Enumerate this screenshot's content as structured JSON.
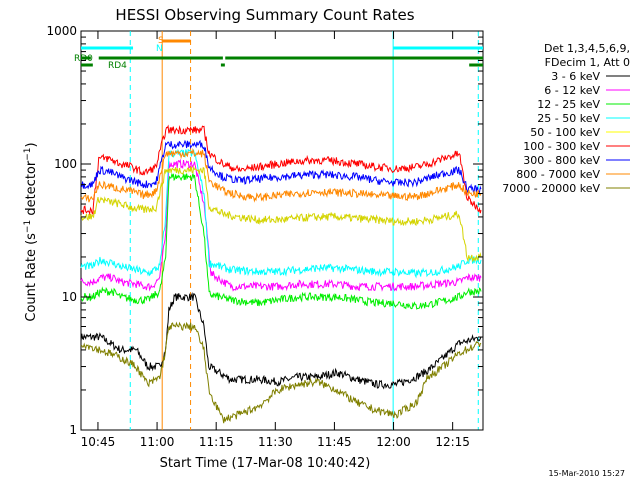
{
  "chart_data": {
    "type": "line",
    "title": "HESSI Observing Summary Count Rates",
    "xlabel": "Start Time (17-Mar-08 10:40:42)",
    "ylabel_parts": [
      "Count Rate (s",
      "−1",
      " detector",
      "−1",
      ")"
    ],
    "footer": "15-Mar-2010 15:27",
    "x_unit": "minutes after 10:40:42",
    "xlim": [
      0,
      102
    ],
    "ylim": [
      1,
      1000
    ],
    "log_y": true,
    "x_ticks": [
      {
        "t": 4.3,
        "label": "10:45"
      },
      {
        "t": 19.3,
        "label": "11:00"
      },
      {
        "t": 34.3,
        "label": "11:15"
      },
      {
        "t": 49.3,
        "label": "11:30"
      },
      {
        "t": 64.3,
        "label": "11:45"
      },
      {
        "t": 79.3,
        "label": "12:00"
      },
      {
        "t": 94.3,
        "label": "12:15"
      }
    ],
    "y_ticks": [
      {
        "v": 1,
        "label": "1"
      },
      {
        "v": 10,
        "label": "10"
      },
      {
        "v": 100,
        "label": "100"
      },
      {
        "v": 1000,
        "label": "1000"
      }
    ],
    "legend_header": [
      "Det 1,3,4,5,6,9,",
      "FDecim 1, Att 0"
    ],
    "series": [
      {
        "name": "3 - 6 keV",
        "color": "#000000",
        "points": [
          [
            0,
            5
          ],
          [
            5,
            5
          ],
          [
            10,
            4
          ],
          [
            14,
            4
          ],
          [
            17,
            3
          ],
          [
            20,
            3
          ],
          [
            21.5,
            4
          ],
          [
            22.3,
            8
          ],
          [
            23.8,
            10
          ],
          [
            28.8,
            10
          ],
          [
            31.2,
            6
          ],
          [
            32.4,
            3
          ],
          [
            38,
            2.4
          ],
          [
            45,
            2.4
          ],
          [
            50,
            2.3
          ],
          [
            55,
            2.5
          ],
          [
            60,
            2.5
          ],
          [
            65,
            2.7
          ],
          [
            70,
            2.4
          ],
          [
            75,
            2.2
          ],
          [
            80,
            2.2
          ],
          [
            85,
            2.5
          ],
          [
            88,
            2.8
          ],
          [
            92,
            3.5
          ],
          [
            96,
            4.5
          ],
          [
            101.5,
            5
          ]
        ]
      },
      {
        "name": "6 - 12 keV",
        "color": "#ff00ff",
        "points": [
          [
            0,
            13
          ],
          [
            3,
            13
          ],
          [
            5,
            14
          ],
          [
            8,
            14
          ],
          [
            10,
            13
          ],
          [
            14,
            12.5
          ],
          [
            16,
            12
          ],
          [
            18,
            12
          ],
          [
            20,
            14
          ],
          [
            21.5,
            30
          ],
          [
            22.3,
            100
          ],
          [
            23.8,
            100
          ],
          [
            28.8,
            100
          ],
          [
            31.2,
            50
          ],
          [
            32,
            30
          ],
          [
            33,
            15
          ],
          [
            38,
            12
          ],
          [
            45,
            12
          ],
          [
            50,
            12
          ],
          [
            55,
            12.5
          ],
          [
            60,
            12.5
          ],
          [
            65,
            12.5
          ],
          [
            70,
            12
          ],
          [
            75,
            12
          ],
          [
            80,
            12
          ],
          [
            85,
            12
          ],
          [
            90,
            12.5
          ],
          [
            96,
            13
          ],
          [
            98,
            14
          ],
          [
            101.5,
            14
          ]
        ]
      },
      {
        "name": "12 - 25 keV",
        "color": "#00ee00",
        "points": [
          [
            0,
            10
          ],
          [
            3,
            10
          ],
          [
            5,
            11
          ],
          [
            8,
            11
          ],
          [
            10,
            10
          ],
          [
            14,
            9.5
          ],
          [
            17,
            9.5
          ],
          [
            20,
            11
          ],
          [
            21.5,
            20
          ],
          [
            22.3,
            80
          ],
          [
            23.8,
            80
          ],
          [
            28.8,
            80
          ],
          [
            31.2,
            30
          ],
          [
            32.5,
            10.5
          ],
          [
            38,
            9.5
          ],
          [
            45,
            9
          ],
          [
            50,
            9.5
          ],
          [
            55,
            10
          ],
          [
            60,
            10
          ],
          [
            65,
            10
          ],
          [
            70,
            9.5
          ],
          [
            75,
            9
          ],
          [
            80,
            9
          ],
          [
            85,
            8.5
          ],
          [
            90,
            9
          ],
          [
            96,
            10
          ],
          [
            98,
            11
          ],
          [
            101.5,
            11
          ]
        ]
      },
      {
        "name": "25 - 50 keV",
        "color": "#00ffff",
        "points": [
          [
            0,
            17
          ],
          [
            3,
            17
          ],
          [
            5,
            19
          ],
          [
            8,
            18
          ],
          [
            10,
            17
          ],
          [
            14,
            16
          ],
          [
            17,
            15
          ],
          [
            20,
            17
          ],
          [
            21.5,
            40
          ],
          [
            22.3,
            120
          ],
          [
            23.8,
            120
          ],
          [
            28.8,
            120
          ],
          [
            31.2,
            60
          ],
          [
            32.5,
            18
          ],
          [
            38,
            16
          ],
          [
            45,
            15.5
          ],
          [
            50,
            15.5
          ],
          [
            55,
            16
          ],
          [
            60,
            16.5
          ],
          [
            65,
            16.5
          ],
          [
            70,
            16
          ],
          [
            75,
            15.5
          ],
          [
            80,
            15.5
          ],
          [
            85,
            15
          ],
          [
            90,
            15.5
          ],
          [
            96,
            17
          ],
          [
            98,
            19
          ],
          [
            101.5,
            19
          ]
        ]
      },
      {
        "name": "50 - 100 keV",
        "color": "#ffff00",
        "marker": true,
        "points": []
      },
      {
        "name": "100 - 300 keV",
        "color": "#ff0000",
        "points": [
          [
            0,
            45
          ],
          [
            3,
            45
          ],
          [
            4.5,
            110
          ],
          [
            7,
            110
          ],
          [
            10,
            100
          ],
          [
            13,
            95
          ],
          [
            16,
            85
          ],
          [
            19,
            95
          ],
          [
            21.5,
            180
          ],
          [
            22.3,
            180
          ],
          [
            23.8,
            180
          ],
          [
            28.8,
            180
          ],
          [
            31.2,
            180
          ],
          [
            32.5,
            120
          ],
          [
            36,
            100
          ],
          [
            40,
            90
          ],
          [
            45,
            95
          ],
          [
            50,
            100
          ],
          [
            55,
            105
          ],
          [
            60,
            107
          ],
          [
            65,
            105
          ],
          [
            70,
            100
          ],
          [
            75,
            95
          ],
          [
            80,
            92
          ],
          [
            85,
            95
          ],
          [
            88,
            100
          ],
          [
            92,
            110
          ],
          [
            96,
            120
          ],
          [
            98,
            55
          ],
          [
            101.5,
            45
          ]
        ]
      },
      {
        "name": "300 - 800 keV",
        "color": "#0000ff",
        "points": [
          [
            0,
            70
          ],
          [
            3,
            70
          ],
          [
            4.5,
            90
          ],
          [
            7,
            88
          ],
          [
            10,
            80
          ],
          [
            13,
            75
          ],
          [
            16,
            70
          ],
          [
            19,
            72
          ],
          [
            21.5,
            140
          ],
          [
            22.3,
            140
          ],
          [
            23.8,
            140
          ],
          [
            28.8,
            140
          ],
          [
            31.2,
            140
          ],
          [
            32.5,
            95
          ],
          [
            36,
            80
          ],
          [
            40,
            75
          ],
          [
            45,
            77
          ],
          [
            50,
            80
          ],
          [
            55,
            82
          ],
          [
            60,
            84
          ],
          [
            65,
            82
          ],
          [
            70,
            80
          ],
          [
            75,
            75
          ],
          [
            80,
            72
          ],
          [
            85,
            73
          ],
          [
            88,
            78
          ],
          [
            92,
            85
          ],
          [
            96,
            90
          ],
          [
            98,
            65
          ],
          [
            101.5,
            65
          ]
        ]
      },
      {
        "name": "800 - 7000 keV",
        "color": "#ff8800",
        "points": [
          [
            0,
            55
          ],
          [
            3,
            55
          ],
          [
            4.5,
            70
          ],
          [
            7,
            68
          ],
          [
            10,
            65
          ],
          [
            13,
            62
          ],
          [
            16,
            58
          ],
          [
            19,
            62
          ],
          [
            21.5,
            120
          ],
          [
            22.3,
            120
          ],
          [
            23.8,
            120
          ],
          [
            28.8,
            120
          ],
          [
            31.2,
            120
          ],
          [
            32.5,
            75
          ],
          [
            36,
            63
          ],
          [
            40,
            58
          ],
          [
            45,
            56
          ],
          [
            50,
            58
          ],
          [
            55,
            60
          ],
          [
            60,
            62
          ],
          [
            65,
            61
          ],
          [
            70,
            60
          ],
          [
            75,
            58
          ],
          [
            80,
            57
          ],
          [
            85,
            57
          ],
          [
            88,
            60
          ],
          [
            92,
            65
          ],
          [
            96,
            70
          ],
          [
            98,
            60
          ],
          [
            101.5,
            60
          ]
        ]
      },
      {
        "name": "7000 - 20000 keV",
        "color": "#808000",
        "points": [
          [
            0,
            4.5
          ],
          [
            5,
            4
          ],
          [
            10,
            3.5
          ],
          [
            14,
            3
          ],
          [
            17,
            2.2
          ],
          [
            20,
            2.5
          ],
          [
            21.5,
            4
          ],
          [
            22.3,
            6
          ],
          [
            23.8,
            6
          ],
          [
            28.8,
            6
          ],
          [
            31.2,
            4
          ],
          [
            32.4,
            2
          ],
          [
            36,
            1.2
          ],
          [
            40,
            1.3
          ],
          [
            45,
            1.5
          ],
          [
            50,
            2
          ],
          [
            55,
            2.2
          ],
          [
            60,
            2.3
          ],
          [
            65,
            2
          ],
          [
            70,
            1.6
          ],
          [
            75,
            1.4
          ],
          [
            80,
            1.3
          ],
          [
            85,
            1.6
          ],
          [
            88,
            2.5
          ],
          [
            92,
            3
          ],
          [
            96,
            3.8
          ],
          [
            101.5,
            4.5
          ]
        ]
      }
    ],
    "yellow_points": [
      [
        0,
        40
      ],
      [
        3,
        40
      ],
      [
        4.5,
        55
      ],
      [
        7,
        52
      ],
      [
        10,
        50
      ],
      [
        13,
        47
      ],
      [
        16,
        45
      ],
      [
        19,
        47
      ],
      [
        21.5,
        90
      ],
      [
        22.3,
        90
      ],
      [
        23.8,
        90
      ],
      [
        28.8,
        90
      ],
      [
        31.2,
        90
      ],
      [
        32.5,
        48
      ],
      [
        36,
        42
      ],
      [
        40,
        40
      ],
      [
        45,
        38
      ],
      [
        50,
        38
      ],
      [
        55,
        39
      ],
      [
        60,
        40
      ],
      [
        65,
        40
      ],
      [
        70,
        39
      ],
      [
        75,
        38
      ],
      [
        80,
        37
      ],
      [
        85,
        37
      ],
      [
        88,
        38
      ],
      [
        92,
        40
      ],
      [
        96,
        42
      ],
      [
        98,
        20
      ],
      [
        101.5,
        20
      ]
    ],
    "vertical_lines": [
      {
        "t": 12.5,
        "color": "#00ffff",
        "style": "dashed"
      },
      {
        "t": 20.6,
        "color": "#ff8800",
        "style": "solid"
      },
      {
        "t": 27.8,
        "color": "#ff8800",
        "style": "dashed"
      },
      {
        "t": 79.2,
        "color": "#00ffff",
        "style": "solid"
      },
      {
        "t": 100.8,
        "color": "#00ffff",
        "style": "dashed"
      }
    ],
    "flags": [
      {
        "label": "S",
        "color": "#ff8800",
        "segments": [
          [
            20.6,
            27.8
          ]
        ]
      },
      {
        "label": "N",
        "color": "#00ffff",
        "segments": [
          [
            0,
            13.2
          ],
          [
            79.3,
            102
          ]
        ]
      },
      {
        "label": "RD0",
        "color": "#008000",
        "segments": [
          [
            0,
            2.5
          ],
          [
            4.5,
            36
          ],
          [
            36.6,
            102
          ]
        ]
      },
      {
        "label": "RD4",
        "color": "#008000",
        "segments": [
          [
            0,
            3
          ],
          [
            35.5,
            36.5
          ],
          [
            98.5,
            102
          ]
        ]
      }
    ]
  }
}
